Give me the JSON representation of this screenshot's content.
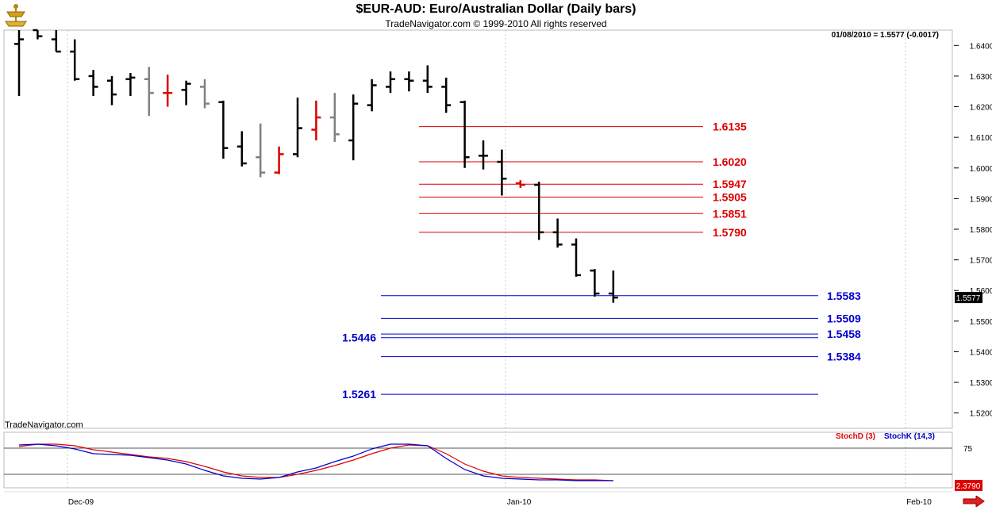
{
  "header": {
    "title": "$EUR-AUD:  Euro/Australian Dollar  (Daily bars)",
    "subtitle": "TradeNavigator.com © 1999-2010 All rights reserved",
    "last_quote": "01/08/2010 = 1.5577 (-0.0017)",
    "watermark": "TradeNavigator.com"
  },
  "colors": {
    "up": "#000000",
    "neutral": "#808080",
    "signal": "#dd0000",
    "resistance": "#dd0000",
    "support": "#0000cc",
    "stochD": "#dd0000",
    "stochK": "#0000cc"
  },
  "chart_data": [
    {
      "type": "ohlc",
      "title": "$EUR-AUD:  Euro/Australian Dollar  (Daily bars)",
      "ylim": [
        1.515,
        1.645
      ],
      "y_ticks": [
        "1.6400",
        "1.6300",
        "1.6200",
        "1.6100",
        "1.6000",
        "1.5900",
        "1.5800",
        "1.5700",
        "1.5600",
        "1.5500",
        "1.5400",
        "1.5300",
        "1.5200"
      ],
      "x_ticks": [
        "Dec-09",
        "Jan-10",
        "Feb-10"
      ],
      "last_price": "1.5577",
      "bars": [
        {
          "o": 1.6405,
          "h": 1.645,
          "l": 1.6235,
          "c": 1.642,
          "color": "black"
        },
        {
          "o": 1.645,
          "h": 1.645,
          "l": 1.642,
          "c": 1.643,
          "color": "black"
        },
        {
          "o": 1.642,
          "h": 1.645,
          "l": 1.638,
          "c": 1.638,
          "color": "black"
        },
        {
          "o": 1.638,
          "h": 1.642,
          "l": 1.6285,
          "c": 1.629,
          "color": "black"
        },
        {
          "o": 1.63,
          "h": 1.632,
          "l": 1.6235,
          "c": 1.6265,
          "color": "black"
        },
        {
          "o": 1.6285,
          "h": 1.63,
          "l": 1.6205,
          "c": 1.624,
          "color": "black"
        },
        {
          "o": 1.629,
          "h": 1.631,
          "l": 1.6235,
          "c": 1.6295,
          "color": "black"
        },
        {
          "o": 1.629,
          "h": 1.633,
          "l": 1.617,
          "c": 1.6245,
          "color": "gray"
        },
        {
          "o": 1.6245,
          "h": 1.6305,
          "l": 1.62,
          "c": 1.6245,
          "color": "red"
        },
        {
          "o": 1.6255,
          "h": 1.6285,
          "l": 1.6205,
          "c": 1.6275,
          "color": "black"
        },
        {
          "o": 1.6265,
          "h": 1.629,
          "l": 1.6195,
          "c": 1.621,
          "color": "gray"
        },
        {
          "o": 1.6215,
          "h": 1.622,
          "l": 1.603,
          "c": 1.6065,
          "color": "black"
        },
        {
          "o": 1.607,
          "h": 1.612,
          "l": 1.6005,
          "c": 1.6015,
          "color": "black"
        },
        {
          "o": 1.6035,
          "h": 1.6145,
          "l": 1.597,
          "c": 1.5985,
          "color": "gray"
        },
        {
          "o": 1.5985,
          "h": 1.607,
          "l": 1.598,
          "c": 1.6045,
          "color": "red"
        },
        {
          "o": 1.6045,
          "h": 1.623,
          "l": 1.6035,
          "c": 1.613,
          "color": "black"
        },
        {
          "o": 1.6125,
          "h": 1.622,
          "l": 1.609,
          "c": 1.6165,
          "color": "red"
        },
        {
          "o": 1.6165,
          "h": 1.6245,
          "l": 1.6085,
          "c": 1.611,
          "color": "gray"
        },
        {
          "o": 1.609,
          "h": 1.624,
          "l": 1.6025,
          "c": 1.621,
          "color": "black"
        },
        {
          "o": 1.6205,
          "h": 1.629,
          "l": 1.6185,
          "c": 1.627,
          "color": "black"
        },
        {
          "o": 1.6265,
          "h": 1.6315,
          "l": 1.6245,
          "c": 1.629,
          "color": "black"
        },
        {
          "o": 1.629,
          "h": 1.6315,
          "l": 1.625,
          "c": 1.6285,
          "color": "black"
        },
        {
          "o": 1.6285,
          "h": 1.6335,
          "l": 1.6245,
          "c": 1.6265,
          "color": "black"
        },
        {
          "o": 1.6265,
          "h": 1.6295,
          "l": 1.618,
          "c": 1.6205,
          "color": "black"
        },
        {
          "o": 1.6215,
          "h": 1.622,
          "l": 1.6,
          "c": 1.6035,
          "color": "black"
        },
        {
          "o": 1.604,
          "h": 1.609,
          "l": 1.5995,
          "c": 1.604,
          "color": "black"
        },
        {
          "o": 1.602,
          "h": 1.606,
          "l": 1.591,
          "c": 1.5965,
          "color": "black"
        },
        {
          "o": 1.595,
          "h": 1.596,
          "l": 1.5935,
          "c": 1.5945,
          "color": "red"
        },
        {
          "o": 1.5945,
          "h": 1.5955,
          "l": 1.5765,
          "c": 1.579,
          "color": "black"
        },
        {
          "o": 1.579,
          "h": 1.5835,
          "l": 1.574,
          "c": 1.575,
          "color": "black"
        },
        {
          "o": 1.575,
          "h": 1.577,
          "l": 1.5645,
          "c": 1.565,
          "color": "black"
        },
        {
          "o": 1.5665,
          "h": 1.567,
          "l": 1.558,
          "c": 1.559,
          "color": "black"
        },
        {
          "o": 1.559,
          "h": 1.5665,
          "l": 1.556,
          "c": 1.5577,
          "color": "black"
        }
      ],
      "levels": [
        {
          "label": "1.6135",
          "value": 1.6135,
          "group": "resistance"
        },
        {
          "label": "1.6020",
          "value": 1.602,
          "group": "resistance"
        },
        {
          "label": "1.5947",
          "value": 1.5947,
          "group": "resistance"
        },
        {
          "label": "1.5905",
          "value": 1.5905,
          "group": "resistance"
        },
        {
          "label": "1.5851",
          "value": 1.5851,
          "group": "resistance"
        },
        {
          "label": "1.5790",
          "value": 1.579,
          "group": "resistance"
        },
        {
          "label": "1.5583",
          "value": 1.5583,
          "group": "support",
          "label_side": "right"
        },
        {
          "label": "1.5509",
          "value": 1.5509,
          "group": "support",
          "label_side": "right"
        },
        {
          "label": "1.5458",
          "value": 1.5458,
          "group": "support",
          "label_side": "right"
        },
        {
          "label": "1.5446",
          "value": 1.5446,
          "group": "support",
          "label_side": "left"
        },
        {
          "label": "1.5384",
          "value": 1.5384,
          "group": "support",
          "label_side": "right"
        },
        {
          "label": "1.5261",
          "value": 1.5261,
          "group": "support",
          "label_side": "left"
        }
      ]
    },
    {
      "type": "line",
      "series": [
        {
          "name": "StochD (3)",
          "color": "#dd0000",
          "values": [
            77,
            80,
            80,
            78,
            73,
            70,
            67,
            64,
            62,
            58,
            52,
            45,
            40,
            38,
            38,
            42,
            47,
            53,
            60,
            68,
            75,
            79,
            78,
            68,
            55,
            46,
            40,
            38,
            37,
            36,
            35,
            35,
            34
          ]
        },
        {
          "name": "StochK (14,3)",
          "color": "#0000cc",
          "values": [
            79,
            80,
            78,
            74,
            68,
            67,
            66,
            63,
            60,
            55,
            47,
            40,
            37,
            36,
            38,
            45,
            50,
            58,
            65,
            74,
            80,
            80,
            78,
            62,
            48,
            40,
            37,
            36,
            35,
            35,
            34,
            34,
            34
          ]
        }
      ],
      "ylim": [
        25,
        95
      ],
      "reference_lines": [
        75,
        42
      ],
      "y_ticks": [
        "75"
      ],
      "last_value": "2.3790"
    }
  ]
}
